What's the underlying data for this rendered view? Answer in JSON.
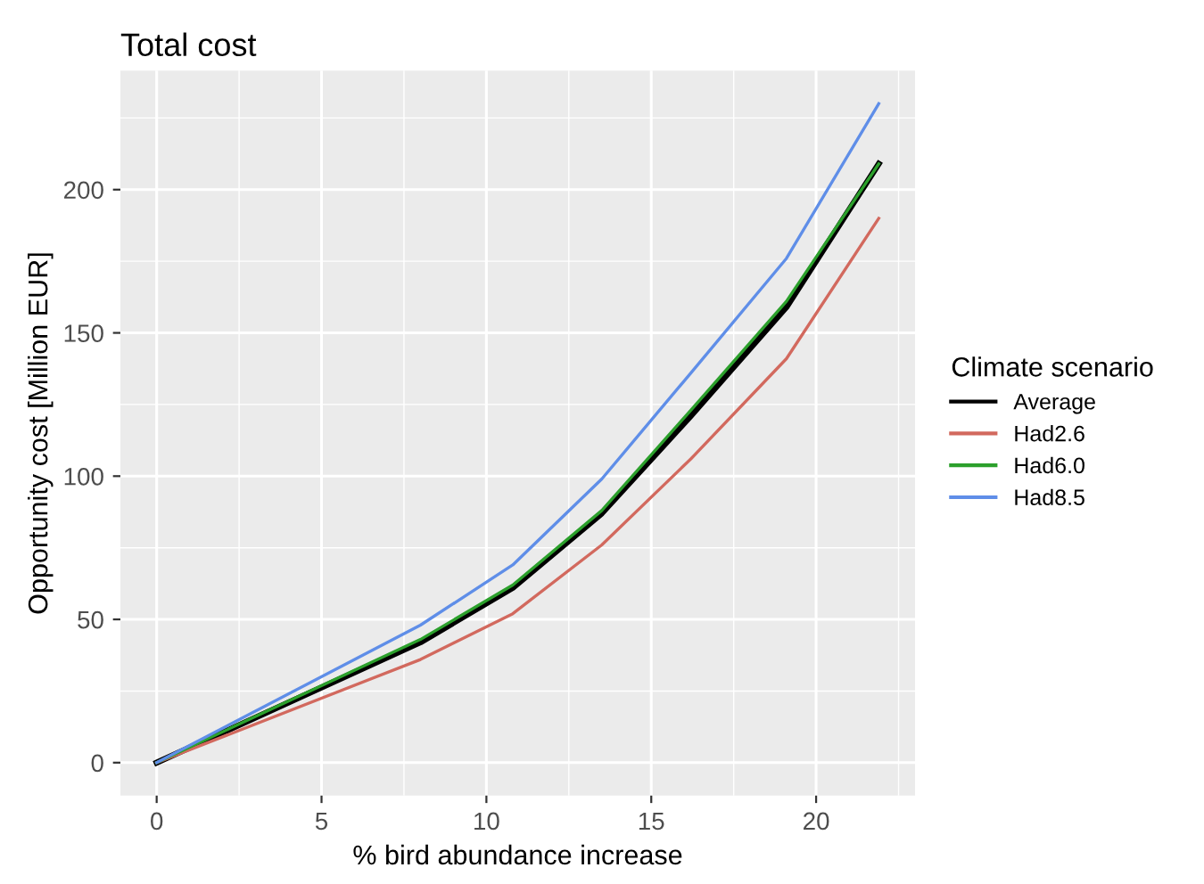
{
  "chart_data": {
    "type": "line",
    "title": "Total cost",
    "xlabel": "% bird abundance increase",
    "ylabel": "Opportunity cost [Million EUR]",
    "legend_title": "Climate scenario",
    "x": [
      0,
      8.0,
      10.8,
      13.5,
      16.2,
      19.1,
      21.9
    ],
    "series": [
      {
        "name": "Average",
        "color": "#000000",
        "values": [
          0,
          42,
          61,
          87,
          121,
          159,
          209
        ]
      },
      {
        "name": "Had2.6",
        "color": "#d2695e",
        "values": [
          0,
          36,
          52,
          76,
          106,
          141,
          190
        ]
      },
      {
        "name": "Had6.0",
        "color": "#2ca02c",
        "values": [
          0,
          43,
          62,
          88,
          123,
          161,
          209
        ]
      },
      {
        "name": "Had8.5",
        "color": "#5f8ee8",
        "values": [
          0,
          48,
          69,
          99,
          136,
          176,
          230
        ]
      }
    ],
    "xlim": [
      -1.1,
      23.0
    ],
    "ylim": [
      -11.5,
      241.5
    ],
    "xticks": [
      0,
      5,
      10,
      15,
      20
    ],
    "yticks": [
      0,
      50,
      100,
      150,
      200
    ],
    "grid": true,
    "legend": "right",
    "marker": "none",
    "line_style": "solid"
  }
}
